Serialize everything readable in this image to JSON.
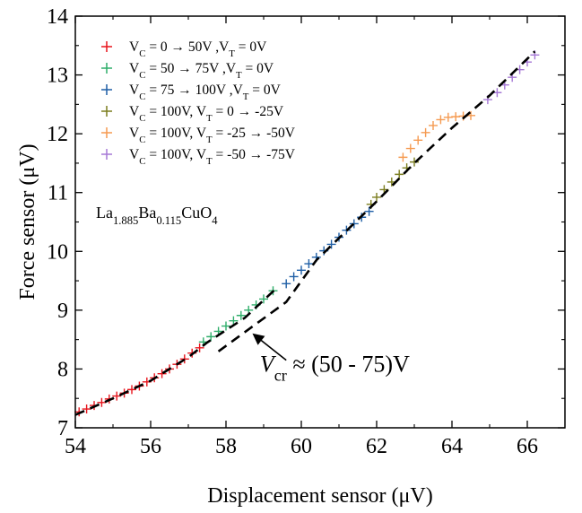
{
  "chart_data": {
    "type": "scatter",
    "xlabel": "Displacement sensor (μV)",
    "ylabel": "Force sensor (μV)",
    "xlim": [
      54,
      67
    ],
    "ylim": [
      7,
      14
    ],
    "xticks": [
      54,
      56,
      58,
      60,
      62,
      64,
      66
    ],
    "yticks": [
      7,
      8,
      9,
      10,
      11,
      12,
      13,
      14
    ],
    "grid": false,
    "legend_position": "top-left",
    "series": [
      {
        "name_parts": [
          "V",
          "C",
          " = 0 → 50V ,V",
          "T",
          " = 0V"
        ],
        "color": "#e8141c",
        "marker": "+",
        "points": [
          [
            54.1,
            7.27
          ],
          [
            54.3,
            7.32
          ],
          [
            54.5,
            7.38
          ],
          [
            54.7,
            7.43
          ],
          [
            54.9,
            7.49
          ],
          [
            55.1,
            7.54
          ],
          [
            55.3,
            7.59
          ],
          [
            55.5,
            7.65
          ],
          [
            55.7,
            7.71
          ],
          [
            55.9,
            7.78
          ],
          [
            56.1,
            7.85
          ],
          [
            56.3,
            7.92
          ],
          [
            56.5,
            8.0
          ],
          [
            56.7,
            8.08
          ],
          [
            56.9,
            8.17
          ],
          [
            57.1,
            8.27
          ],
          [
            57.3,
            8.36
          ]
        ]
      },
      {
        "name_parts": [
          "V",
          "C",
          " = 50 → 75V ,V",
          "T",
          " = 0V"
        ],
        "color": "#2eae6a",
        "marker": "+",
        "points": [
          [
            57.4,
            8.46
          ],
          [
            57.6,
            8.55
          ],
          [
            57.8,
            8.64
          ],
          [
            58.0,
            8.73
          ],
          [
            58.2,
            8.82
          ],
          [
            58.4,
            8.91
          ],
          [
            58.6,
            9.0
          ],
          [
            58.8,
            9.09
          ],
          [
            59.0,
            9.19
          ],
          [
            59.25,
            9.33
          ]
        ]
      },
      {
        "name_parts": [
          "V",
          "C",
          " = 75 → 100V ,V",
          "T",
          " = 0V"
        ],
        "color": "#1f5fa6",
        "marker": "+",
        "points": [
          [
            59.6,
            9.45
          ],
          [
            59.8,
            9.57
          ],
          [
            60.0,
            9.68
          ],
          [
            60.2,
            9.79
          ],
          [
            60.4,
            9.9
          ],
          [
            60.6,
            10.01
          ],
          [
            60.8,
            10.12
          ],
          [
            61.0,
            10.24
          ],
          [
            61.2,
            10.36
          ],
          [
            61.4,
            10.47
          ],
          [
            61.6,
            10.58
          ],
          [
            61.8,
            10.68
          ]
        ]
      },
      {
        "name_parts": [
          "V",
          "C",
          " = 100V, V",
          "T",
          " = 0 → -25V"
        ],
        "color": "#7b7d1f",
        "marker": "+",
        "points": [
          [
            61.85,
            10.8
          ],
          [
            62.0,
            10.92
          ],
          [
            62.2,
            11.05
          ],
          [
            62.4,
            11.18
          ],
          [
            62.6,
            11.31
          ],
          [
            62.8,
            11.42
          ],
          [
            63.0,
            11.52
          ]
        ]
      },
      {
        "name_parts": [
          "V",
          "C",
          " = 100V, V",
          "T",
          " = -25 → -50V"
        ],
        "color": "#f59a50",
        "marker": "+",
        "points": [
          [
            62.7,
            11.6
          ],
          [
            62.9,
            11.75
          ],
          [
            63.1,
            11.89
          ],
          [
            63.3,
            12.02
          ],
          [
            63.5,
            12.14
          ],
          [
            63.7,
            12.24
          ],
          [
            63.9,
            12.28
          ],
          [
            64.1,
            12.29
          ],
          [
            64.3,
            12.3
          ],
          [
            64.5,
            12.31
          ]
        ]
      },
      {
        "name_parts": [
          "V",
          "C",
          " = 100V, V",
          "T",
          " = -50 → -75V"
        ],
        "color": "#a678d6",
        "marker": "+",
        "points": [
          [
            64.95,
            12.58
          ],
          [
            65.2,
            12.7
          ],
          [
            65.4,
            12.83
          ],
          [
            65.6,
            12.96
          ],
          [
            65.8,
            13.09
          ],
          [
            66.0,
            13.22
          ],
          [
            66.2,
            13.34
          ]
        ]
      }
    ],
    "fit_lines": [
      {
        "points": [
          [
            54.0,
            7.22
          ],
          [
            55.0,
            7.5
          ],
          [
            56.0,
            7.8
          ],
          [
            57.0,
            8.2
          ],
          [
            57.5,
            8.45
          ],
          [
            58.5,
            8.87
          ],
          [
            59.3,
            9.35
          ]
        ]
      },
      {
        "points": [
          [
            57.8,
            8.3
          ],
          [
            58.7,
            8.72
          ],
          [
            59.6,
            9.14
          ],
          [
            60.4,
            9.85
          ],
          [
            61.2,
            10.35
          ],
          [
            62.0,
            10.85
          ],
          [
            63.0,
            11.5
          ],
          [
            64.0,
            12.1
          ],
          [
            65.0,
            12.65
          ],
          [
            66.2,
            13.4
          ]
        ]
      }
    ],
    "annotation": {
      "symbol": "V",
      "subscript": "cr",
      "text": " ≈ (50 - 75)V",
      "arrow_from": [
        59.6,
        8.15
      ],
      "arrow_to": [
        58.75,
        8.58
      ],
      "text_anchor": [
        58.9,
        7.95
      ]
    },
    "sample_label_parts": [
      "La",
      "1.885",
      "Ba",
      "0.115",
      "CuO",
      "4"
    ]
  }
}
